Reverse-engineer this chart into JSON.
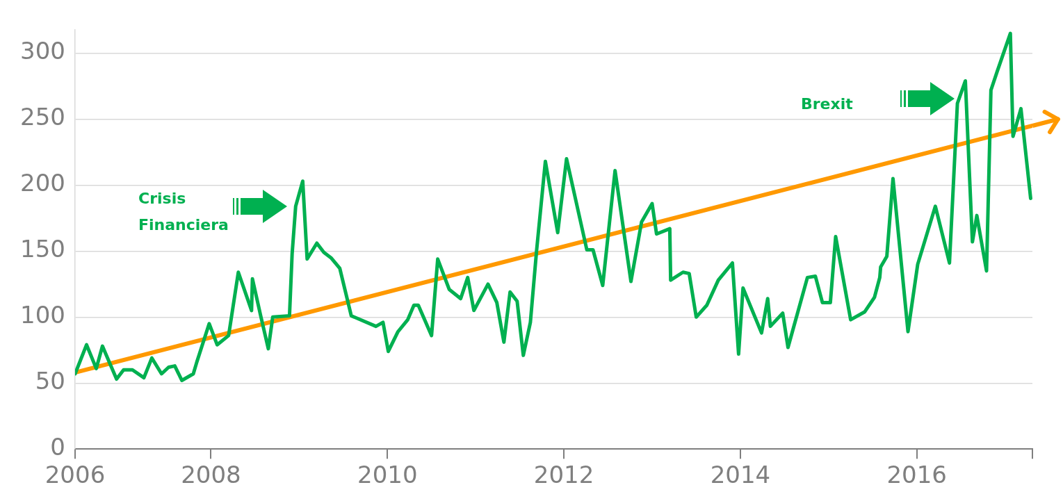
{
  "chart_data": {
    "type": "line",
    "xlim": [
      2006.46,
      2017.31
    ],
    "xticks": [
      {
        "value": 2006.46,
        "label": "2006"
      },
      2008,
      2010,
      2012,
      2014,
      2016,
      {
        "value": 2017.31,
        "label": null
      }
    ],
    "ylim": [
      0,
      318
    ],
    "yticks": [
      0,
      50,
      100,
      150,
      200,
      250,
      300
    ],
    "grid": "y",
    "legend": false,
    "marker": "none",
    "series": [
      {
        "color": "#00b050",
        "x": [
          2006.46,
          2006.59,
          2006.7,
          2006.77,
          2006.93,
          2007.01,
          2007.11,
          2007.24,
          2007.33,
          2007.44,
          2007.52,
          2007.59,
          2007.67,
          2007.8,
          2007.84,
          2007.98,
          2008.07,
          2008.2,
          2008.23,
          2008.31,
          2008.46,
          2008.47,
          2008.56,
          2008.65,
          2008.7,
          2008.89,
          2008.92,
          2008.96,
          2009.04,
          2009.09,
          2009.2,
          2009.28,
          2009.36,
          2009.46,
          2009.59,
          2009.87,
          2009.95,
          2010.01,
          2010.12,
          2010.23,
          2010.3,
          2010.35,
          2010.5,
          2010.57,
          2010.7,
          2010.83,
          2010.91,
          2010.98,
          2011.14,
          2011.24,
          2011.32,
          2011.39,
          2011.47,
          2011.54,
          2011.62,
          2011.69,
          2011.79,
          2011.93,
          2012.03,
          2012.26,
          2012.33,
          2012.44,
          2012.58,
          2012.76,
          2012.88,
          2013.0,
          2013.05,
          2013.2,
          2013.21,
          2013.35,
          2013.42,
          2013.5,
          2013.62,
          2013.75,
          2013.91,
          2013.98,
          2014.03,
          2014.24,
          2014.31,
          2014.34,
          2014.48,
          2014.54,
          2014.76,
          2014.85,
          2014.93,
          2015.02,
          2015.08,
          2015.25,
          2015.41,
          2015.52,
          2015.58,
          2015.59,
          2015.66,
          2015.73,
          2015.9,
          2016.01,
          2016.21,
          2016.37,
          2016.46,
          2016.55,
          2016.63,
          2016.68,
          2016.79,
          2016.84,
          2016.91,
          2017.06,
          2017.09,
          2017.18,
          2017.29
        ],
        "values": [
          57,
          79,
          61,
          78,
          53,
          60,
          60,
          54,
          69,
          57,
          62,
          63,
          52,
          57,
          66,
          95,
          79,
          86,
          99,
          134,
          105,
          129,
          102,
          76,
          100,
          101,
          148,
          184,
          203,
          144,
          156,
          149,
          145,
          137,
          101,
          93,
          96,
          74,
          89,
          98,
          109,
          109,
          86,
          144,
          121,
          114,
          130,
          105,
          125,
          111,
          81,
          119,
          112,
          71,
          96,
          150,
          218,
          164,
          220,
          151,
          151,
          124,
          211,
          127,
          172,
          186,
          163,
          167,
          128,
          134,
          133,
          100,
          109,
          128,
          141,
          72,
          122,
          88,
          114,
          93,
          103,
          77,
          130,
          131,
          111,
          111,
          161,
          98,
          104,
          115,
          130,
          138,
          146,
          205,
          89,
          140,
          184,
          141,
          262,
          279,
          157,
          177,
          135,
          272,
          286,
          315,
          237,
          258,
          190
        ]
      },
      {
        "type": "line",
        "color": "#ff9900",
        "x": [
          2006.46,
          2017.31
        ],
        "values": [
          58,
          245
        ]
      }
    ],
    "annotations": [
      "Crisis Financiera",
      "Brexit"
    ]
  }
}
